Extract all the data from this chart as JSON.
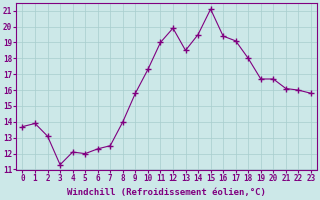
{
  "x": [
    0,
    1,
    2,
    3,
    4,
    5,
    6,
    7,
    8,
    9,
    10,
    11,
    12,
    13,
    14,
    15,
    16,
    17,
    18,
    19,
    20,
    21,
    22,
    23
  ],
  "y": [
    13.7,
    13.9,
    13.1,
    11.3,
    12.1,
    12.0,
    12.3,
    12.5,
    14.0,
    15.8,
    17.3,
    19.0,
    19.9,
    18.5,
    19.5,
    21.1,
    19.4,
    19.1,
    18.0,
    16.7,
    16.7,
    16.1,
    16.0,
    15.8
  ],
  "line_color": "#800080",
  "marker": "+",
  "markersize": 4,
  "linewidth": 0.8,
  "markeredgewidth": 1.0,
  "xlabel": "Windchill (Refroidissement éolien,°C)",
  "xlabel_fontsize": 6.5,
  "ylim": [
    11,
    21.5
  ],
  "yticks": [
    11,
    12,
    13,
    14,
    15,
    16,
    17,
    18,
    19,
    20,
    21
  ],
  "xticks": [
    0,
    1,
    2,
    3,
    4,
    5,
    6,
    7,
    8,
    9,
    10,
    11,
    12,
    13,
    14,
    15,
    16,
    17,
    18,
    19,
    20,
    21,
    22,
    23
  ],
  "xtick_labels": [
    "0",
    "1",
    "2",
    "3",
    "4",
    "5",
    "6",
    "7",
    "8",
    "9",
    "10",
    "11",
    "12",
    "13",
    "14",
    "15",
    "16",
    "17",
    "18",
    "19",
    "20",
    "21",
    "22",
    "23"
  ],
  "grid_color": "#a8cece",
  "bg_color": "#cce8e8",
  "tick_color": "#800080",
  "tick_fontsize": 5.5,
  "label_color": "#800080",
  "fig_bg": "#cce8e8",
  "xlim": [
    -0.5,
    23.5
  ]
}
